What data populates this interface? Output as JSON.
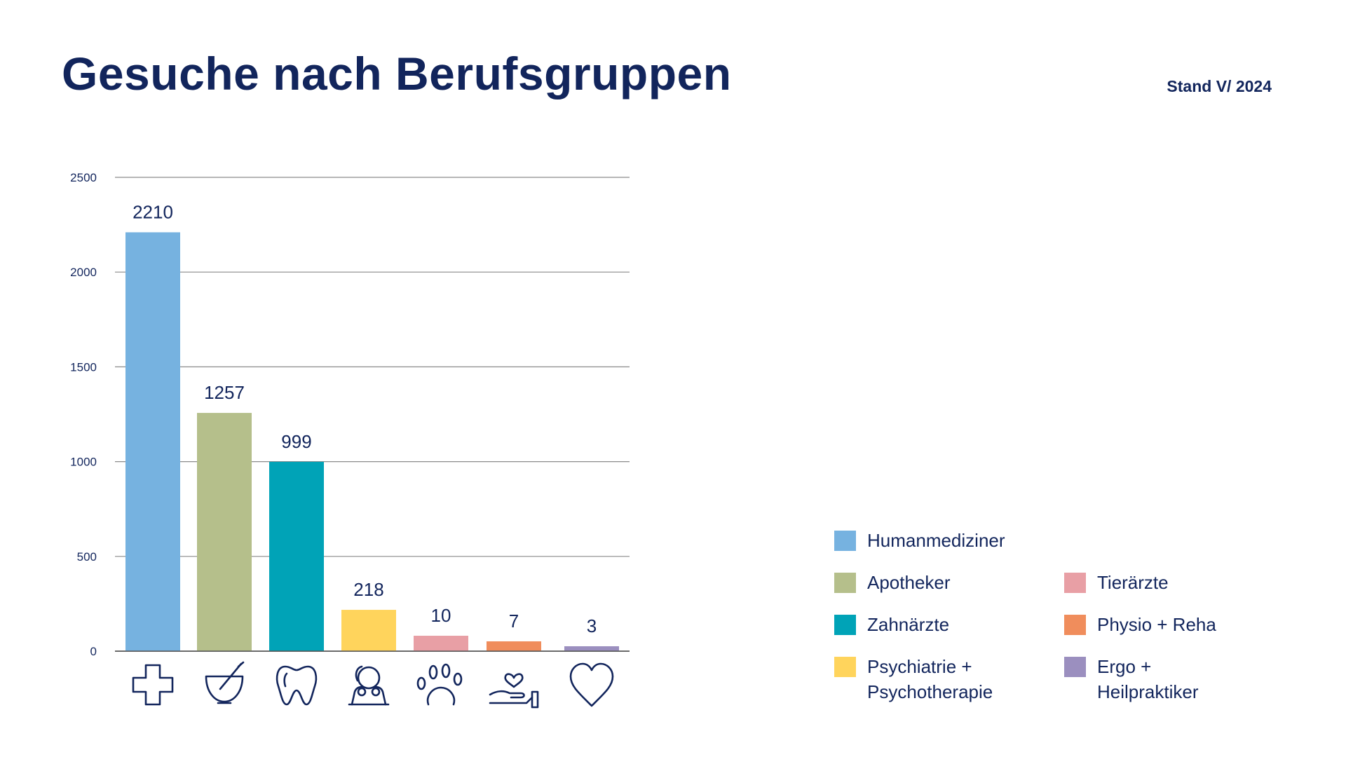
{
  "header": {
    "title": "Gesuche nach Berufsgruppen",
    "stand": "Stand V/ 2024"
  },
  "chart_data": {
    "type": "bar",
    "title": "Gesuche nach Berufsgruppen",
    "xlabel": "",
    "ylabel": "",
    "ylim": [
      0,
      2500
    ],
    "yticks": [
      0,
      500,
      1000,
      1500,
      2000,
      2500
    ],
    "grid": true,
    "legend_position": "bottom-right",
    "categories": [
      "Humanmediziner",
      "Apotheker",
      "Zahnärzte",
      "Psychiatrie + Psychotherapie",
      "Tierärzte",
      "Physio + Reha",
      "Ergo + Heilpraktiker"
    ],
    "values": [
      2210,
      1257,
      999,
      218,
      10,
      7,
      3
    ],
    "colors": [
      "#76b2e0",
      "#b5bf8b",
      "#00a3b7",
      "#ffd45c",
      "#e89fa5",
      "#f08d5c",
      "#9b8fbf"
    ],
    "icons": [
      "medical-cross-icon",
      "mortar-pestle-icon",
      "tooth-icon",
      "psychotherapy-person-icon",
      "paw-icon",
      "caring-hand-icon",
      "heart-icon"
    ]
  },
  "legend": {
    "items": [
      {
        "label": "Humanmediziner",
        "color": "#76b2e0"
      },
      {
        "label": "Apotheker",
        "color": "#b5bf8b"
      },
      {
        "label": "Zahnärzte",
        "color": "#00a3b7"
      },
      {
        "label": "Psychiatrie +\nPsychotherapie",
        "color": "#ffd45c"
      },
      {
        "label": "Tierärzte",
        "color": "#e89fa5"
      },
      {
        "label": "Physio + Reha",
        "color": "#f08d5c"
      },
      {
        "label": "Ergo +\nHeilpraktiker",
        "color": "#9b8fbf"
      }
    ]
  }
}
